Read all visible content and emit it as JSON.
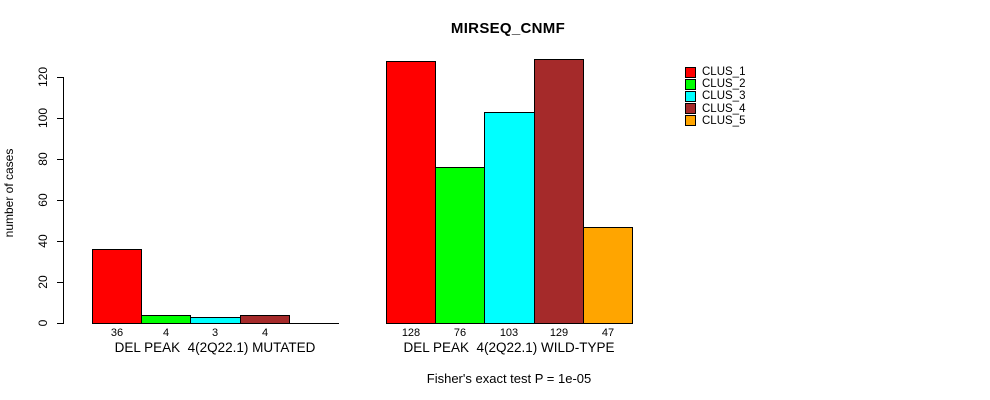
{
  "chart_data": {
    "type": "bar",
    "title": "MIRSEQ_CNMF",
    "ylabel": "number of cases",
    "xlabel": "",
    "ylim": [
      0,
      120
    ],
    "yticks": [
      0,
      20,
      40,
      60,
      80,
      100,
      120
    ],
    "grid": false,
    "background": "#FFFFFF",
    "axis_color": "#000000",
    "legend_position": "right",
    "legend": [
      {
        "label": "CLUS_1",
        "color": "#FF0000"
      },
      {
        "label": "CLUS_2",
        "color": "#00FF00"
      },
      {
        "label": "CLUS_3",
        "color": "#00FFFF"
      },
      {
        "label": "CLUS_4",
        "color": "#A52A2A"
      },
      {
        "label": "CLUS_5",
        "color": "#FFA500"
      }
    ],
    "groups": [
      {
        "label": "DEL PEAK  4(2Q22.1) MUTATED",
        "series": [
          "CLUS_1",
          "CLUS_2",
          "CLUS_3",
          "CLUS_4",
          "CLUS_5"
        ],
        "values": [
          36,
          4,
          3,
          4,
          0
        ],
        "bar_labels": [
          "36",
          "4",
          "3",
          "4",
          ""
        ]
      },
      {
        "label": "DEL PEAK  4(2Q22.1) WILD-TYPE",
        "series": [
          "CLUS_1",
          "CLUS_2",
          "CLUS_3",
          "CLUS_4",
          "CLUS_5"
        ],
        "values": [
          128,
          76,
          103,
          129,
          47
        ],
        "bar_labels": [
          "128",
          "76",
          "103",
          "129",
          "47"
        ]
      }
    ],
    "footnote": "Fisher's exact test P = 1e-05"
  }
}
